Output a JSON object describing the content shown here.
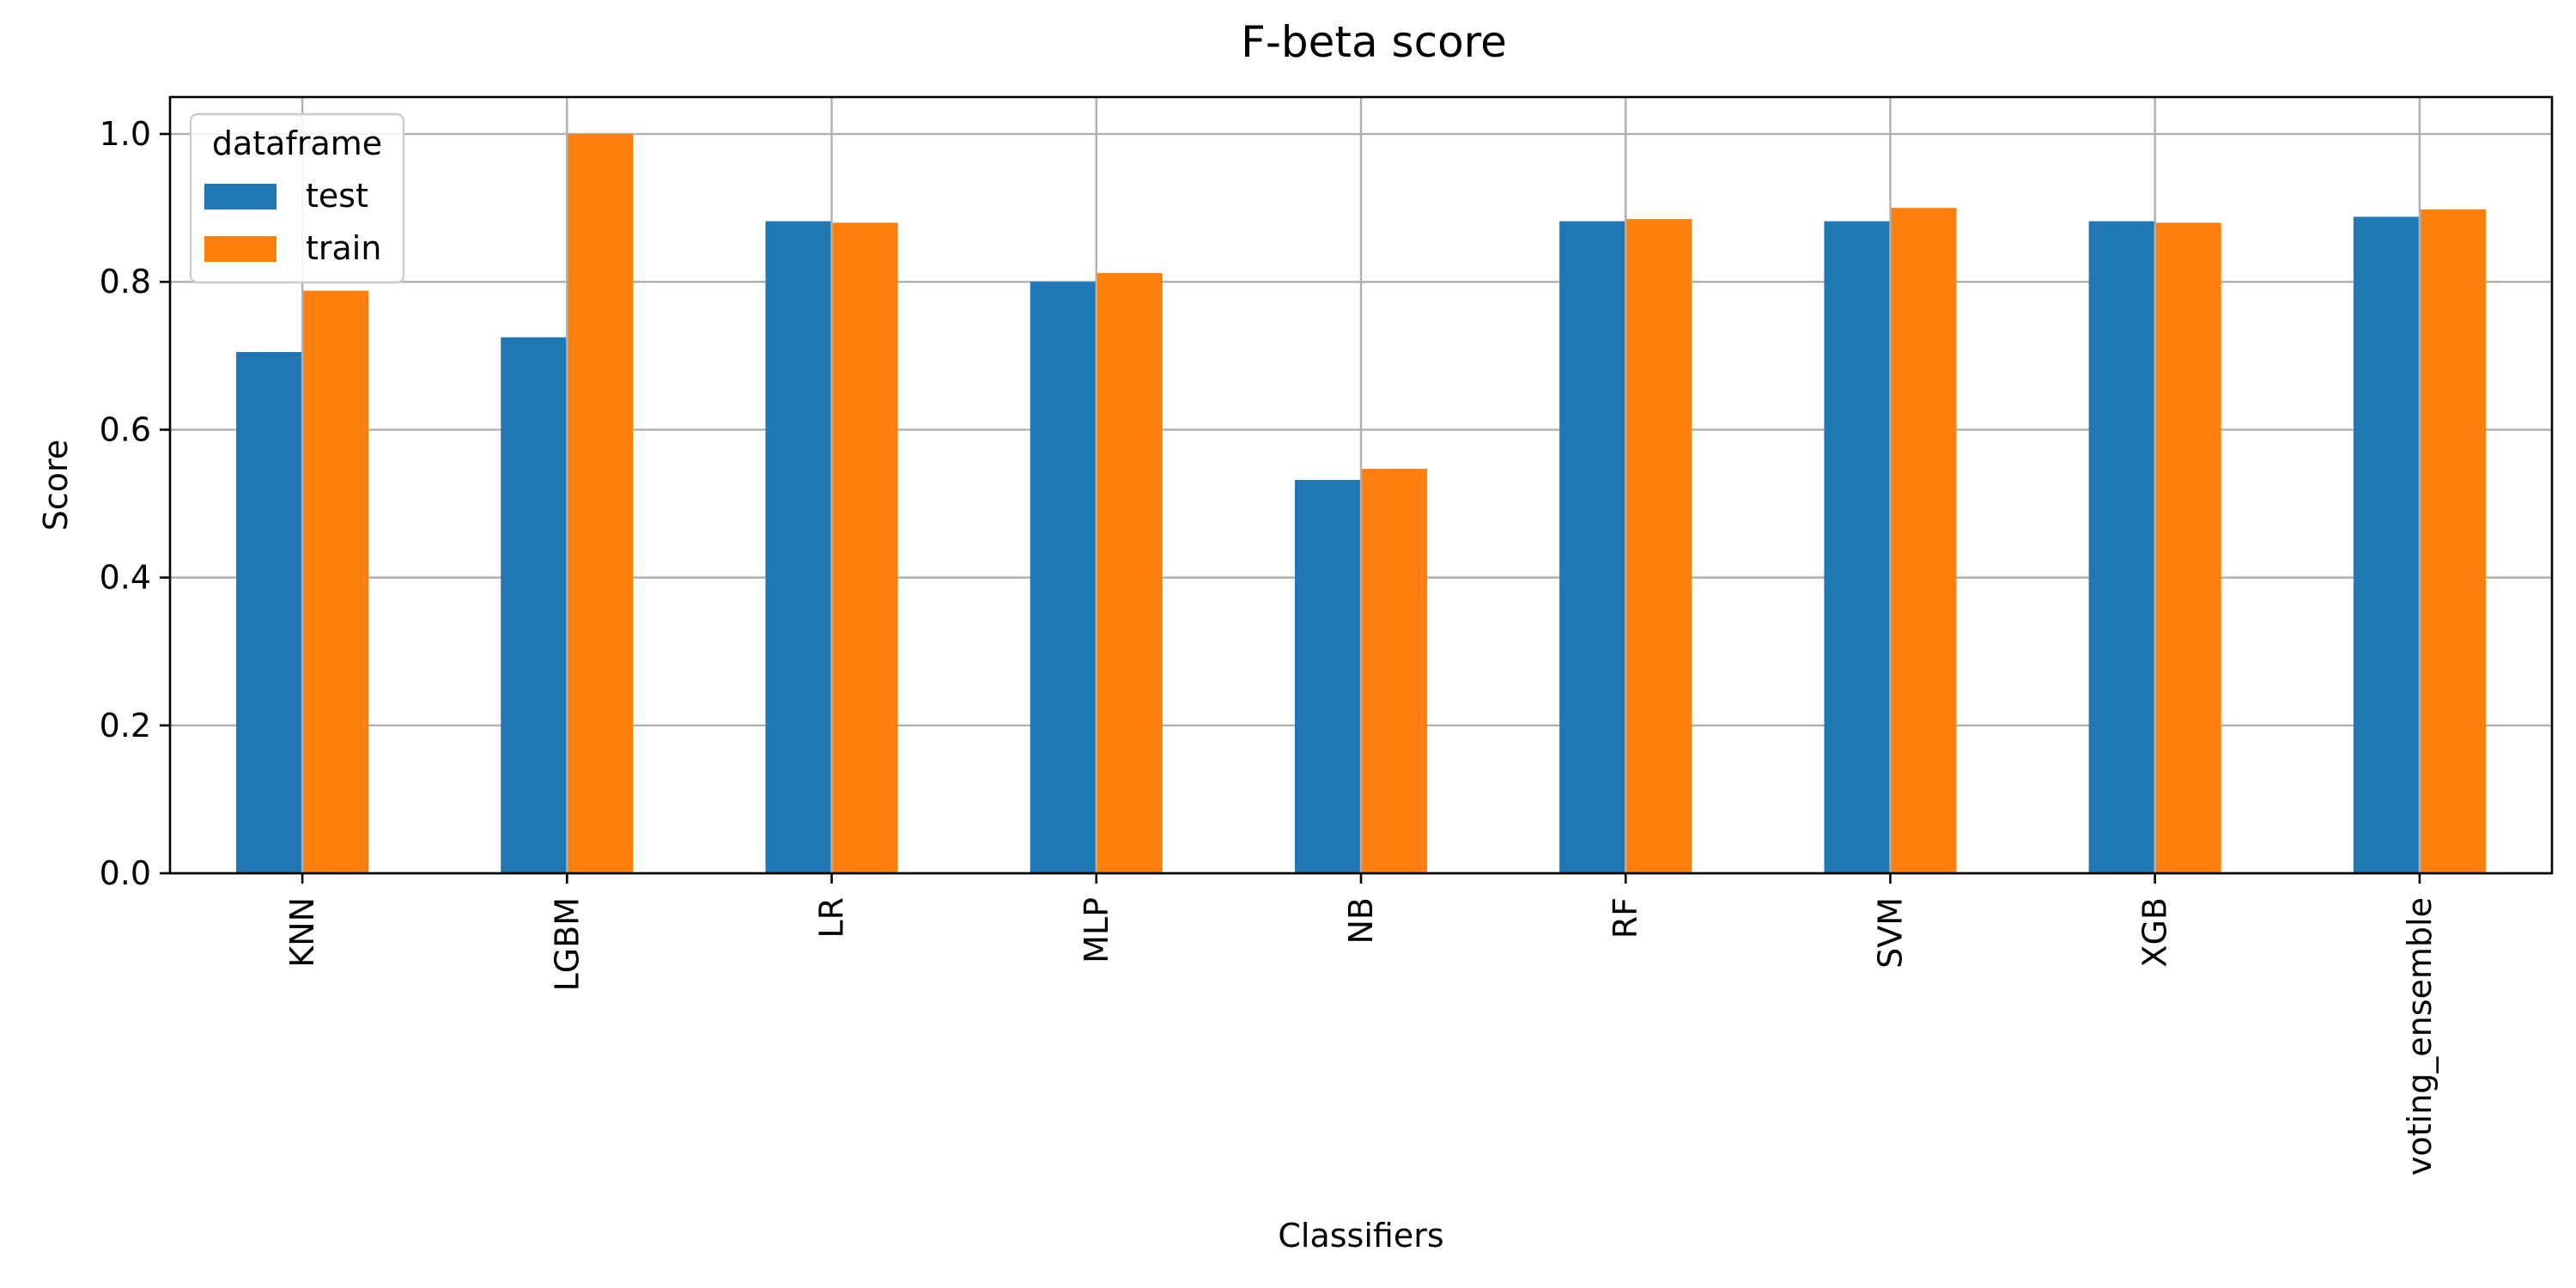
{
  "chart_data": {
    "type": "bar",
    "title": "F-beta score",
    "xlabel": "Classifiers",
    "ylabel": "Score",
    "categories": [
      "KNN",
      "LGBM",
      "LR",
      "MLP",
      "NB",
      "RF",
      "SVM",
      "XGB",
      "voting_ensemble"
    ],
    "series": [
      {
        "name": "test",
        "color": "#1f77b4",
        "values": [
          0.705,
          0.725,
          0.882,
          0.8,
          0.532,
          0.882,
          0.882,
          0.882,
          0.888
        ]
      },
      {
        "name": "train",
        "color": "#ff7f0e",
        "values": [
          0.788,
          1.0,
          0.88,
          0.812,
          0.547,
          0.885,
          0.9,
          0.88,
          0.898
        ]
      }
    ],
    "ylim": [
      0,
      1.05
    ],
    "yticks": [
      "0.0",
      "0.2",
      "0.4",
      "0.6",
      "0.8",
      "1.0"
    ],
    "grid": true,
    "legend": {
      "title": "dataframe",
      "placement": "top-left"
    }
  }
}
